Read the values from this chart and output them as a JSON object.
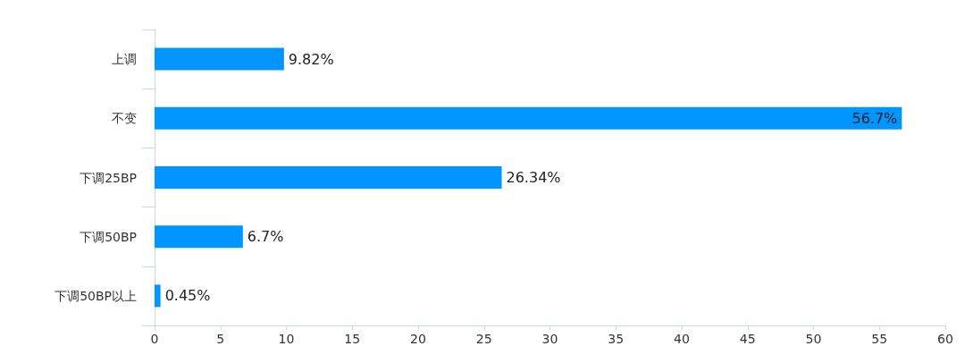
{
  "chart_data": {
    "type": "bar",
    "orientation": "horizontal",
    "categories": [
      "上调",
      "不变",
      "下调25BP",
      "下调50BP",
      "下调50BP以上"
    ],
    "values": [
      9.82,
      56.7,
      26.34,
      6.7,
      0.45
    ],
    "value_labels": [
      "9.82%",
      "56.7%",
      "26.34%",
      "6.7%",
      "0.45%"
    ],
    "color": "#0095ff",
    "xlim": [
      0,
      60
    ],
    "xticks": [
      0,
      5,
      10,
      15,
      20,
      25,
      30,
      35,
      40,
      45,
      50,
      55,
      60
    ],
    "grid": false
  }
}
